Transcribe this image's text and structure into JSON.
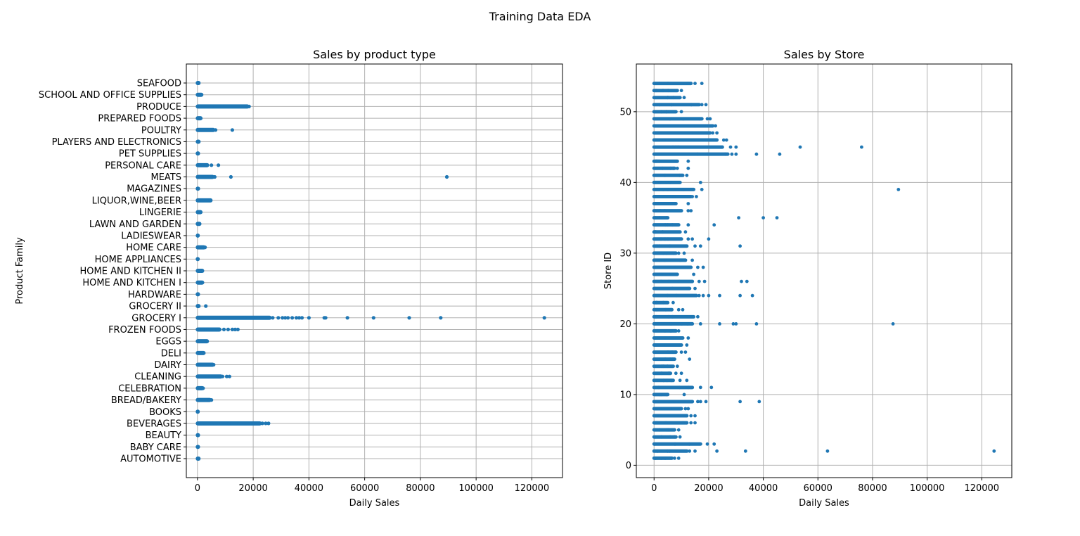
{
  "figure_title": "Training Data EDA",
  "colors": {
    "point": "#1f77b4",
    "grid": "#b0b0b0",
    "axis": "#000000"
  },
  "chart_data": [
    {
      "type": "scatter",
      "title": "Sales by product type",
      "xlabel": "Daily Sales",
      "ylabel": "Product Family",
      "xlim": [
        -4000,
        131000
      ],
      "x_ticks": [
        0,
        20000,
        40000,
        60000,
        80000,
        100000,
        120000
      ],
      "grid": true,
      "categories": [
        "AUTOMOTIVE",
        "BABY CARE",
        "BEAUTY",
        "BEVERAGES",
        "BOOKS",
        "BREAD/BAKERY",
        "CELEBRATION",
        "CLEANING",
        "DAIRY",
        "DELI",
        "EGGS",
        "FROZEN FOODS",
        "GROCERY I",
        "GROCERY II",
        "HARDWARE",
        "HOME AND KITCHEN I",
        "HOME AND KITCHEN II",
        "HOME APPLIANCES",
        "HOME CARE",
        "LADIESWEAR",
        "LAWN AND GARDEN",
        "LINGERIE",
        "LIQUOR,WINE,BEER",
        "MAGAZINES",
        "MEATS",
        "PERSONAL CARE",
        "PET SUPPLIES",
        "PLAYERS AND ELECTRONICS",
        "POULTRY",
        "PREPARED FOODS",
        "PRODUCE",
        "SCHOOL AND OFFICE SUPPLIES",
        "SEAFOOD"
      ],
      "ranges": [
        [
          0,
          500
        ],
        [
          0,
          300
        ],
        [
          0,
          300
        ],
        [
          0,
          22500
        ],
        [
          0,
          200
        ],
        [
          0,
          4500
        ],
        [
          0,
          1800
        ],
        [
          0,
          8500
        ],
        [
          0,
          5500
        ],
        [
          0,
          2300
        ],
        [
          0,
          3500
        ],
        [
          0,
          8000
        ],
        [
          0,
          26000
        ],
        [
          0,
          500
        ],
        [
          0,
          300
        ],
        [
          0,
          1800
        ],
        [
          0,
          1800
        ],
        [
          0,
          200
        ],
        [
          0,
          2400
        ],
        [
          0,
          200
        ],
        [
          0,
          800
        ],
        [
          0,
          1200
        ],
        [
          0,
          4800
        ],
        [
          0,
          300
        ],
        [
          0,
          5500
        ],
        [
          0,
          3600
        ],
        [
          0,
          300
        ],
        [
          0,
          500
        ],
        [
          0,
          5800
        ],
        [
          0,
          1200
        ],
        [
          0,
          18000
        ],
        [
          0,
          1500
        ],
        [
          0,
          500
        ]
      ],
      "outliers": [
        [
          3,
          23300
        ],
        [
          3,
          24500
        ],
        [
          3,
          25500
        ],
        [
          5,
          5000
        ],
        [
          6,
          2000
        ],
        [
          7,
          9000
        ],
        [
          7,
          10500
        ],
        [
          7,
          11500
        ],
        [
          8,
          5800
        ],
        [
          11,
          9500
        ],
        [
          11,
          11000
        ],
        [
          11,
          12500
        ],
        [
          11,
          13500
        ],
        [
          11,
          14500
        ],
        [
          12,
          27000
        ],
        [
          12,
          29000
        ],
        [
          12,
          30500
        ],
        [
          12,
          31500
        ],
        [
          12,
          32500
        ],
        [
          12,
          34000
        ],
        [
          12,
          35500
        ],
        [
          12,
          36500
        ],
        [
          12,
          37500
        ],
        [
          12,
          40000
        ],
        [
          12,
          45500
        ],
        [
          12,
          46000
        ],
        [
          12,
          53800
        ],
        [
          12,
          63200
        ],
        [
          12,
          76000
        ],
        [
          12,
          87300
        ],
        [
          12,
          124500
        ],
        [
          13,
          3000
        ],
        [
          18,
          2700
        ],
        [
          24,
          6200
        ],
        [
          24,
          12000
        ],
        [
          24,
          89500
        ],
        [
          25,
          5000
        ],
        [
          25,
          7500
        ],
        [
          28,
          6500
        ],
        [
          28,
          12500
        ],
        [
          30,
          18500
        ]
      ]
    },
    {
      "type": "scatter",
      "title": "Sales by Store",
      "xlabel": "Daily Sales",
      "ylabel": "Store ID",
      "xlim": [
        -6500,
        131000
      ],
      "ylim": [
        -1.75,
        56.75
      ],
      "x_ticks": [
        0,
        20000,
        40000,
        60000,
        80000,
        100000,
        120000
      ],
      "y_ticks": [
        0,
        10,
        20,
        30,
        40,
        50
      ],
      "grid": true,
      "store_ids": [
        1,
        2,
        3,
        4,
        5,
        6,
        7,
        8,
        9,
        10,
        11,
        12,
        13,
        14,
        15,
        16,
        17,
        18,
        19,
        20,
        21,
        22,
        23,
        24,
        25,
        26,
        27,
        28,
        29,
        30,
        31,
        32,
        33,
        34,
        35,
        36,
        37,
        38,
        39,
        40,
        41,
        42,
        43,
        44,
        45,
        46,
        47,
        48,
        49,
        50,
        51,
        52,
        53,
        54
      ],
      "ranges": [
        [
          0,
          6500
        ],
        [
          0,
          12000
        ],
        [
          0,
          17000
        ],
        [
          0,
          8000
        ],
        [
          0,
          7500
        ],
        [
          0,
          12000
        ],
        [
          0,
          12000
        ],
        [
          0,
          10000
        ],
        [
          0,
          14000
        ],
        [
          0,
          5000
        ],
        [
          0,
          14000
        ],
        [
          0,
          7000
        ],
        [
          0,
          6000
        ],
        [
          0,
          7000
        ],
        [
          0,
          7500
        ],
        [
          0,
          8000
        ],
        [
          0,
          10000
        ],
        [
          0,
          10500
        ],
        [
          0,
          8000
        ],
        [
          0,
          14000
        ],
        [
          0,
          14500
        ],
        [
          0,
          6500
        ],
        [
          0,
          5000
        ],
        [
          0,
          15500
        ],
        [
          0,
          13000
        ],
        [
          0,
          14000
        ],
        [
          0,
          8500
        ],
        [
          0,
          13500
        ],
        [
          0,
          11500
        ],
        [
          0,
          8000
        ],
        [
          0,
          12000
        ],
        [
          0,
          10000
        ],
        [
          0,
          9500
        ],
        [
          0,
          9000
        ],
        [
          0,
          5000
        ],
        [
          0,
          10000
        ],
        [
          0,
          8000
        ],
        [
          0,
          13500
        ],
        [
          0,
          14500
        ],
        [
          0,
          9500
        ],
        [
          0,
          10500
        ],
        [
          0,
          7500
        ],
        [
          0,
          8500
        ],
        [
          0,
          27000
        ],
        [
          0,
          25000
        ],
        [
          0,
          23000
        ],
        [
          0,
          20500
        ],
        [
          0,
          21500
        ],
        [
          0,
          17500
        ],
        [
          0,
          8000
        ],
        [
          0,
          16500
        ],
        [
          0,
          9500
        ],
        [
          0,
          8500
        ],
        [
          0,
          13500
        ]
      ],
      "outliers": [
        [
          1,
          7500
        ],
        [
          1,
          9000
        ],
        [
          2,
          13000
        ],
        [
          2,
          15000
        ],
        [
          2,
          23000
        ],
        [
          2,
          33500
        ],
        [
          2,
          63500
        ],
        [
          2,
          124500
        ],
        [
          3,
          19500
        ],
        [
          3,
          22000
        ],
        [
          4,
          9500
        ],
        [
          5,
          9000
        ],
        [
          6,
          13500
        ],
        [
          6,
          15000
        ],
        [
          7,
          13500
        ],
        [
          7,
          15000
        ],
        [
          8,
          11500
        ],
        [
          8,
          12500
        ],
        [
          9,
          16000
        ],
        [
          9,
          17000
        ],
        [
          9,
          19000
        ],
        [
          9,
          31500
        ],
        [
          9,
          38500
        ],
        [
          10,
          11000
        ],
        [
          11,
          17000
        ],
        [
          11,
          21000
        ],
        [
          12,
          9500
        ],
        [
          12,
          12000
        ],
        [
          13,
          8000
        ],
        [
          13,
          10000
        ],
        [
          14,
          8500
        ],
        [
          15,
          13000
        ],
        [
          16,
          10000
        ],
        [
          16,
          11500
        ],
        [
          17,
          12000
        ],
        [
          18,
          12500
        ],
        [
          19,
          9000
        ],
        [
          20,
          17000
        ],
        [
          20,
          24000
        ],
        [
          20,
          29000
        ],
        [
          20,
          30000
        ],
        [
          20,
          37500
        ],
        [
          20,
          87500
        ],
        [
          21,
          16000
        ],
        [
          22,
          9000
        ],
        [
          22,
          10500
        ],
        [
          23,
          7000
        ],
        [
          24,
          16500
        ],
        [
          24,
          18000
        ],
        [
          24,
          20000
        ],
        [
          24,
          24000
        ],
        [
          24,
          31500
        ],
        [
          24,
          36000
        ],
        [
          25,
          15000
        ],
        [
          26,
          16500
        ],
        [
          26,
          18500
        ],
        [
          26,
          32000
        ],
        [
          26,
          34000
        ],
        [
          27,
          14500
        ],
        [
          28,
          16000
        ],
        [
          28,
          18000
        ],
        [
          29,
          14000
        ],
        [
          30,
          9000
        ],
        [
          30,
          11000
        ],
        [
          31,
          15000
        ],
        [
          31,
          17000
        ],
        [
          31,
          31500
        ],
        [
          32,
          12500
        ],
        [
          32,
          14000
        ],
        [
          32,
          20000
        ],
        [
          33,
          11500
        ],
        [
          34,
          12500
        ],
        [
          34,
          22000
        ],
        [
          35,
          31000
        ],
        [
          35,
          40000
        ],
        [
          35,
          45000
        ],
        [
          36,
          12500
        ],
        [
          36,
          13500
        ],
        [
          37,
          12500
        ],
        [
          38,
          14000
        ],
        [
          38,
          15500
        ],
        [
          39,
          17500
        ],
        [
          39,
          89500
        ],
        [
          40,
          17000
        ],
        [
          41,
          12000
        ],
        [
          42,
          8500
        ],
        [
          42,
          12500
        ],
        [
          43,
          12500
        ],
        [
          44,
          28500
        ],
        [
          44,
          30000
        ],
        [
          44,
          37500
        ],
        [
          44,
          46000
        ],
        [
          45,
          28000
        ],
        [
          45,
          30000
        ],
        [
          45,
          53500
        ],
        [
          45,
          76000
        ],
        [
          46,
          25500
        ],
        [
          46,
          26500
        ],
        [
          47,
          21500
        ],
        [
          47,
          23000
        ],
        [
          48,
          22500
        ],
        [
          49,
          19500
        ],
        [
          49,
          20500
        ],
        [
          50,
          10000
        ],
        [
          51,
          17500
        ],
        [
          51,
          19000
        ],
        [
          52,
          11000
        ],
        [
          53,
          10000
        ],
        [
          54,
          15000
        ],
        [
          54,
          17500
        ]
      ]
    }
  ]
}
